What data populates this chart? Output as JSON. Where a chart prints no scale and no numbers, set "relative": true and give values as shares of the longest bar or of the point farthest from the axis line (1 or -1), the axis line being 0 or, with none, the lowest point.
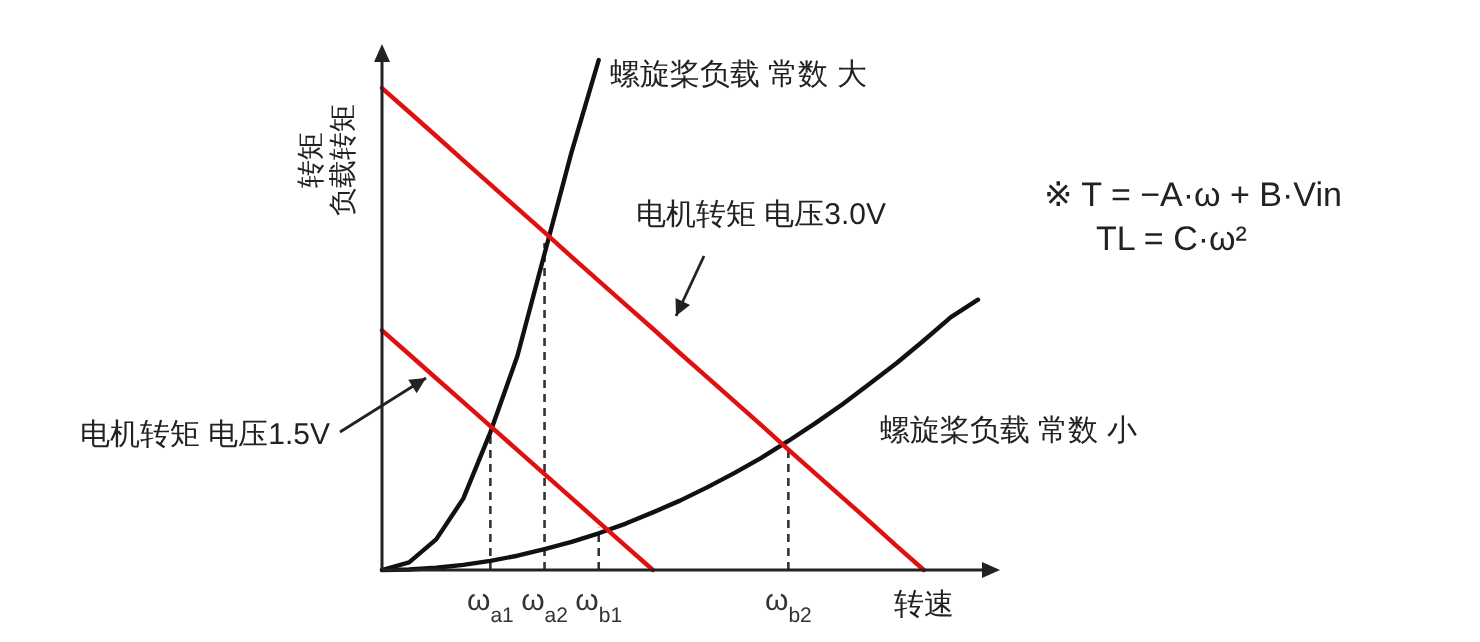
{
  "chart_data": {
    "type": "line",
    "relative": true,
    "xlabel": "转速",
    "ylabel": "转矩",
    "categories": [
      null,
      null,
      null,
      null,
      "ω$_{a1}$",
      null,
      "ω$_{a2}$",
      null,
      "ω$_{b1}$",
      null,
      null,
      null,
      null,
      null,
      null,
      "ω$_{b2}$",
      null,
      null,
      null,
      null,
      null,
      null,
      null
    ],
    "series": [
      {
        "name": "螺旋桨负载 常数 大",
        "color": "#111111",
        "values": [
          0,
          0.015,
          0.06,
          0.14,
          0.27,
          0.42,
          0.62,
          0.82,
          1.0,
          null,
          null,
          null,
          null,
          null,
          null,
          null,
          null,
          null,
          null,
          null,
          null,
          null,
          null
        ]
      },
      {
        "name": "螺旋桨负载 常数 小",
        "color": "#111111",
        "values": [
          0,
          0.001,
          0.0045,
          0.01,
          0.018,
          0.028,
          0.041,
          0.055,
          0.072,
          0.091,
          0.113,
          0.136,
          0.162,
          0.19,
          0.22,
          0.253,
          0.288,
          0.325,
          0.365,
          0.406,
          0.45,
          0.496,
          0.53
        ]
      },
      {
        "name": "电机转矩 电压3.0V",
        "color": "#e01010",
        "values": [
          0.945,
          0.898,
          0.851,
          0.803,
          0.756,
          0.709,
          0.662,
          0.614,
          0.567,
          0.52,
          0.473,
          0.425,
          0.378,
          0.331,
          0.284,
          0.236,
          0.189,
          0.142,
          0.095,
          0.047,
          0,
          null,
          null
        ]
      },
      {
        "name": "电机转矩 电压1.5V",
        "color": "#e01010",
        "values": [
          0.47,
          0.423,
          0.376,
          0.329,
          0.282,
          0.235,
          0.188,
          0.141,
          0.094,
          0.047,
          0,
          null,
          null,
          null,
          null,
          null,
          null,
          null,
          null,
          null,
          null,
          null,
          null
        ]
      }
    ],
    "ref_lines": [
      {
        "axis": "x",
        "value": "ω$_{a1}$",
        "color": "#333333",
        "line_style": "dashed"
      },
      {
        "axis": "x",
        "value": "ω$_{a2}$",
        "color": "#333333",
        "line_style": "dashed"
      },
      {
        "axis": "x",
        "value": "ω$_{b1}$",
        "color": "#333333",
        "line_style": "dashed"
      },
      {
        "axis": "x",
        "value": "ω$_{b2}$",
        "color": "#333333",
        "line_style": "dashed"
      }
    ],
    "annotations": [
      "负载转矩",
      "※  T = −A·ω + B·Vin",
      "TL = C·ω²"
    ]
  }
}
